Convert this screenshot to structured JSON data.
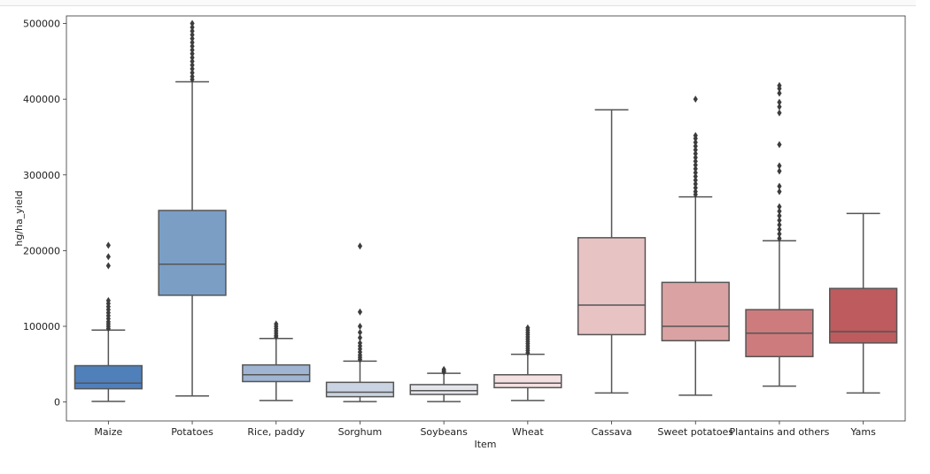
{
  "chart_data": {
    "type": "box",
    "xlabel": "Item",
    "ylabel": "hg/ha_yield",
    "ylim": [
      -25000,
      510000
    ],
    "yticks": [
      0,
      100000,
      200000,
      300000,
      400000,
      500000
    ],
    "grid": false,
    "legend": "none",
    "categories": [
      "Maize",
      "Potatoes",
      "Rice, paddy",
      "Sorghum",
      "Soybeans",
      "Wheat",
      "Cassava",
      "Sweet potatoes",
      "Plantains and others",
      "Yams"
    ],
    "colors": [
      "#4f80ba",
      "#7b9ec5",
      "#9fb5d2",
      "#c9d3e1",
      "#e3e5ea",
      "#f3e0e1",
      "#e8c3c4",
      "#dba2a3",
      "#cd7b7c",
      "#bd5b5e"
    ],
    "boxes": [
      {
        "whisker_low": 800,
        "q1": 17500,
        "median": 25000,
        "q3": 48000,
        "whisker_high": 95000,
        "outliers": [
          97000,
          100000,
          103000,
          106000,
          110000,
          114000,
          118000,
          122000,
          126000,
          130000,
          134000,
          180000,
          192000,
          207000
        ]
      },
      {
        "whisker_low": 8000,
        "q1": 141000,
        "median": 182000,
        "q3": 253000,
        "whisker_high": 423000,
        "outliers": [
          426000,
          430000,
          435000,
          440000,
          445000,
          450000,
          455000,
          460000,
          465000,
          470000,
          475000,
          480000,
          485000,
          490000,
          495000,
          500000
        ]
      },
      {
        "whisker_low": 2000,
        "q1": 27000,
        "median": 36000,
        "q3": 49000,
        "whisker_high": 84000,
        "outliers": [
          86000,
          88000,
          91000,
          94000,
          97000,
          100000,
          103000
        ]
      },
      {
        "whisker_low": 500,
        "q1": 7000,
        "median": 13000,
        "q3": 26000,
        "whisker_high": 54000,
        "outliers": [
          56000,
          59000,
          62000,
          66000,
          70000,
          74000,
          78000,
          85000,
          92000,
          100000,
          119000,
          206000
        ]
      },
      {
        "whisker_low": 500,
        "q1": 10000,
        "median": 15000,
        "q3": 23000,
        "whisker_high": 38000,
        "outliers": [
          39500,
          41000,
          43000
        ]
      },
      {
        "whisker_low": 2000,
        "q1": 19000,
        "median": 25000,
        "q3": 36000,
        "whisker_high": 63000,
        "outliers": [
          65000,
          68000,
          71000,
          74000,
          77000,
          80000,
          83000,
          86000,
          89000,
          92000,
          95000,
          98000
        ]
      },
      {
        "whisker_low": 12000,
        "q1": 89000,
        "median": 128000,
        "q3": 217000,
        "whisker_high": 386000,
        "outliers": []
      },
      {
        "whisker_low": 9000,
        "q1": 81000,
        "median": 100000,
        "q3": 158000,
        "whisker_high": 271000,
        "outliers": [
          274000,
          278000,
          283000,
          288000,
          293000,
          298000,
          303000,
          308000,
          313000,
          318000,
          323000,
          328000,
          333000,
          338000,
          343000,
          348000,
          352000,
          400000
        ]
      },
      {
        "whisker_low": 21000,
        "q1": 60000,
        "median": 91000,
        "q3": 122000,
        "whisker_high": 213000,
        "outliers": [
          216000,
          222000,
          228000,
          234000,
          240000,
          246000,
          252000,
          258000,
          278000,
          285000,
          305000,
          312000,
          340000,
          382000,
          390000,
          396000,
          408000,
          414000,
          418000
        ]
      },
      {
        "whisker_low": 12000,
        "q1": 78000,
        "median": 93000,
        "q3": 150000,
        "whisker_high": 249000,
        "outliers": []
      }
    ]
  }
}
